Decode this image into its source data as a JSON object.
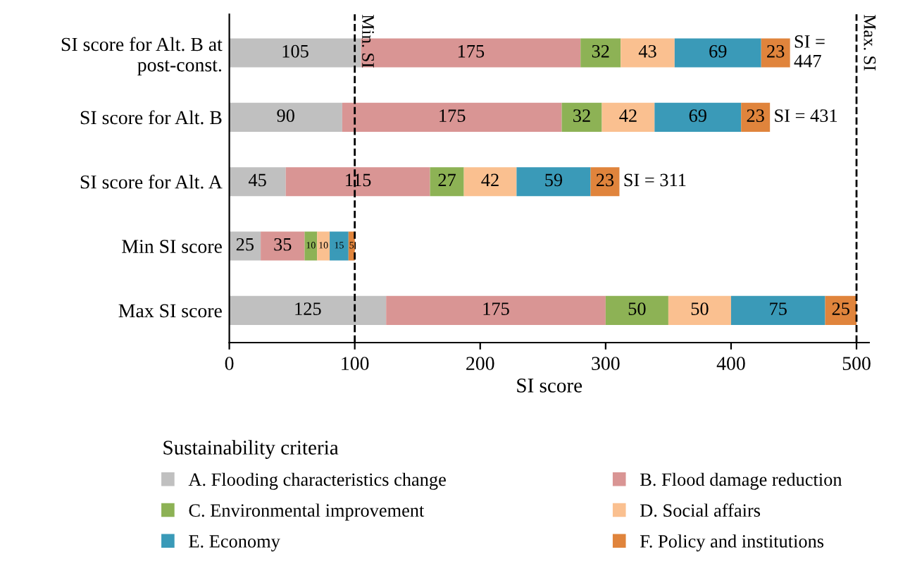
{
  "chart_data": {
    "type": "bar",
    "orientation": "horizontal",
    "stacked": true,
    "xlabel": "SI score",
    "legend_title": "Sustainability criteria",
    "legend": "bottom",
    "grid": false,
    "data_labels": true,
    "categories": [
      "SI score for Alt. B at\npost-const.",
      "SI score for Alt. B",
      "SI score for Alt. A",
      "Min SI score",
      "Max SI score"
    ],
    "series": [
      {
        "name": "A. Flooding characteristics change",
        "color": "#c0c0c0",
        "values": [
          105,
          90,
          45,
          25,
          125
        ]
      },
      {
        "name": "B. Flood damage reduction",
        "color": "#d99594",
        "values": [
          175,
          175,
          115,
          35,
          175
        ]
      },
      {
        "name": "C. Environmental improvement",
        "color": "#8db255",
        "values": [
          32,
          32,
          27,
          10,
          50
        ]
      },
      {
        "name": "D. Social affairs",
        "color": "#fac090",
        "values": [
          43,
          42,
          42,
          10,
          50
        ]
      },
      {
        "name": "E. Economy",
        "color": "#3a9ab8",
        "values": [
          69,
          69,
          59,
          15,
          75
        ]
      },
      {
        "name": "F. Policy and institutions",
        "color": "#e0843c",
        "values": [
          23,
          23,
          23,
          5,
          25
        ]
      }
    ],
    "xlim": [
      0,
      510
    ],
    "xticks": [
      0,
      100,
      200,
      300,
      400,
      500
    ],
    "ref_lines": [
      {
        "axis": "x",
        "value": 100,
        "label": "Min. SI",
        "line_style": "dashed",
        "color": "#000000"
      },
      {
        "axis": "x",
        "value": 500,
        "label": "Max. SI",
        "line_style": "dashed",
        "color": "#000000"
      }
    ],
    "annotations": [
      {
        "text": "SI =\n447",
        "x": 447,
        "y": "SI score for Alt. B at\npost-const."
      },
      {
        "text": "SI = 431",
        "x": 431,
        "y": "SI score for Alt. B"
      },
      {
        "text": "SI = 311",
        "x": 311,
        "y": "SI score for Alt. A"
      }
    ]
  }
}
